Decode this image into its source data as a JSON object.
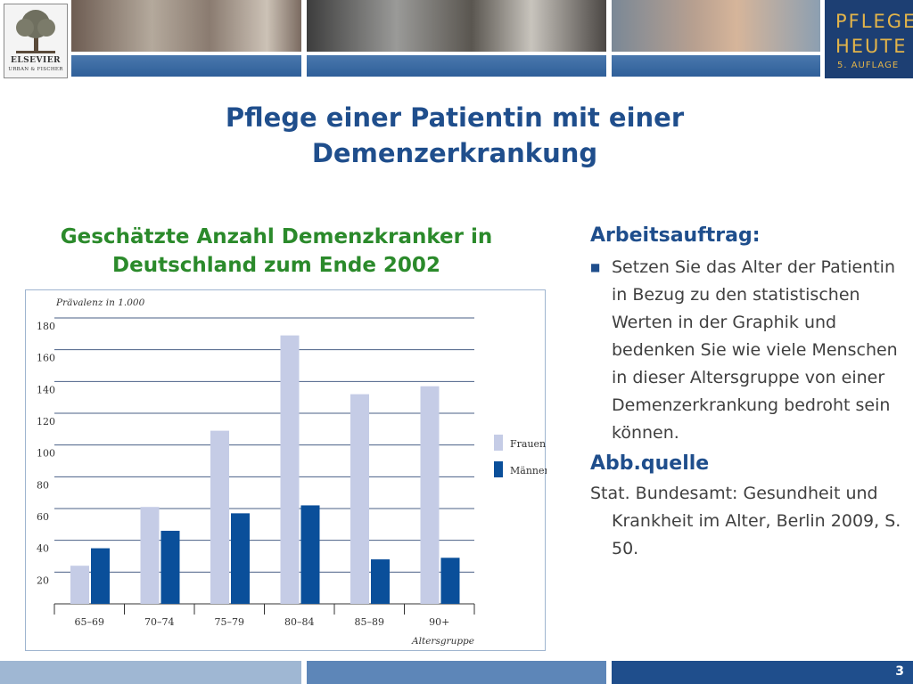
{
  "header": {
    "publisher_logo_line1": "ELSEVIER",
    "publisher_logo_line2": "URBAN & FISCHER",
    "brand_line1": "PFLEGE",
    "brand_line2": "HEUTE",
    "brand_line3": "5. AUFLAGE"
  },
  "slide": {
    "title_line1": "Pflege einer Patientin mit einer",
    "title_line2": "Demenzerkrankung",
    "chart_heading_line1": "Geschätzte Anzahl Demenzkranker in",
    "chart_heading_line2": "Deutschland zum Ende 2002",
    "task_heading": "Arbeitsauftrag:",
    "task_text": "Setzen Sie das Alter der Patientin in Bezug zu den statistischen Werten in der Graphik und bedenken Sie wie viele Menschen in dieser Altersgruppe von einer Demenzerkrankung bedroht sein können.",
    "source_heading": "Abb.quelle",
    "source_text": "Stat. Bundesamt: Gesundheit und Krankheit im Alter, Berlin 2009, S. 50.",
    "page_number": "3"
  },
  "colors": {
    "frauen": "#c5cce6",
    "maenner": "#0a4f9a",
    "title": "#1f4e8c",
    "chart_heading": "#2b8a2b",
    "brand_bg": "#1d3f73",
    "brand_text": "#e3b44a",
    "footer_bar": "#3d6ea8"
  },
  "chart_data": {
    "type": "bar",
    "title": "",
    "ylabel": "Prävalenz in 1.000",
    "xlabel": "Altersgruppe",
    "categories": [
      "65–69",
      "70–74",
      "75–79",
      "80–84",
      "85–89",
      "90+"
    ],
    "series": [
      {
        "name": "Frauen",
        "values": [
          24,
          61,
          109,
          169,
          132,
          137
        ]
      },
      {
        "name": "Männer",
        "values": [
          35,
          46,
          57,
          62,
          28,
          29
        ]
      }
    ],
    "ylim": [
      0,
      180
    ],
    "yticks": [
      20,
      40,
      60,
      80,
      100,
      120,
      140,
      160,
      180
    ],
    "grid": true,
    "legend_position": "right"
  }
}
